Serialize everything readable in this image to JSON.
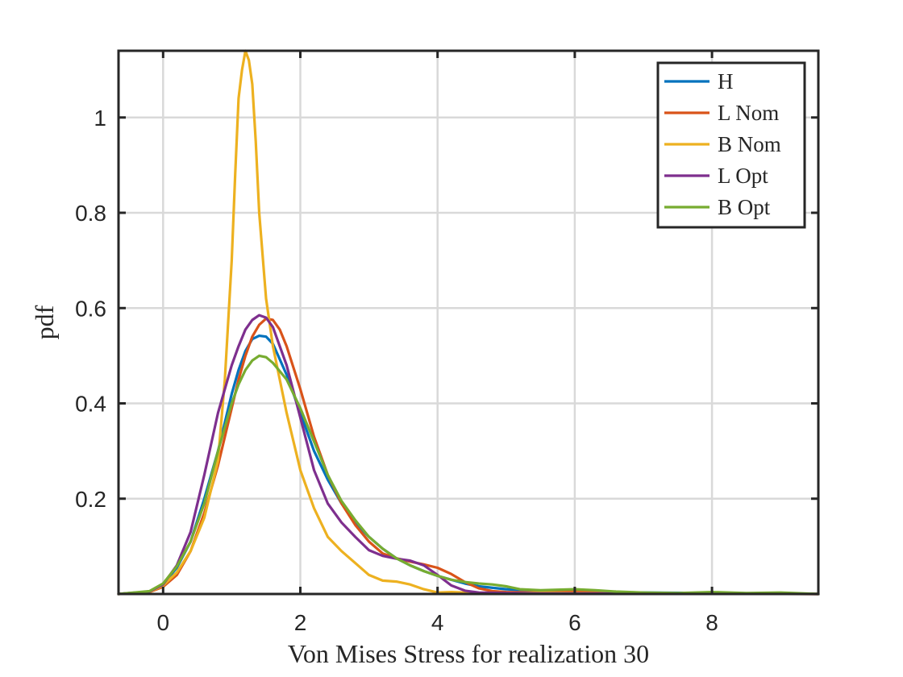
{
  "chart_data": {
    "type": "line",
    "title": "",
    "xlabel": "Von Mises Stress for realization 30",
    "ylabel": "pdf",
    "xlim": [
      -0.65,
      9.55
    ],
    "ylim": [
      0,
      1.14
    ],
    "xticks": [
      0,
      2,
      4,
      6,
      8
    ],
    "yticks": [
      0.2,
      0.4,
      0.6,
      0.8,
      1
    ],
    "xtick_labels": [
      "0",
      "2",
      "4",
      "6",
      "8"
    ],
    "ytick_labels": [
      "0.2",
      "0.4",
      "0.6",
      "0.8",
      "1"
    ],
    "grid": true,
    "legend_position": "top-right",
    "series": [
      {
        "name": "H",
        "color": "#0072BD",
        "x": [
          -0.65,
          -0.2,
          0.0,
          0.2,
          0.4,
          0.6,
          0.8,
          1.0,
          1.1,
          1.2,
          1.3,
          1.4,
          1.5,
          1.6,
          1.8,
          2.0,
          2.2,
          2.4,
          2.6,
          2.8,
          3.0,
          3.2,
          3.4,
          3.6,
          3.8,
          4.0,
          4.2,
          4.4,
          4.6,
          5.0,
          5.5,
          6.0,
          6.5,
          7.0,
          8.0,
          9.0,
          9.55
        ],
        "y": [
          0.0,
          0.005,
          0.02,
          0.055,
          0.11,
          0.2,
          0.3,
          0.42,
          0.47,
          0.51,
          0.535,
          0.542,
          0.54,
          0.525,
          0.46,
          0.38,
          0.3,
          0.24,
          0.19,
          0.15,
          0.12,
          0.095,
          0.075,
          0.06,
          0.048,
          0.038,
          0.03,
          0.022,
          0.016,
          0.01,
          0.006,
          0.008,
          0.004,
          0.003,
          0.002,
          0.001,
          0.0
        ]
      },
      {
        "name": "L Nom",
        "color": "#D95319",
        "x": [
          -0.65,
          -0.2,
          0.0,
          0.2,
          0.4,
          0.6,
          0.8,
          1.0,
          1.1,
          1.2,
          1.3,
          1.4,
          1.5,
          1.6,
          1.7,
          1.8,
          2.0,
          2.2,
          2.4,
          2.6,
          2.8,
          3.0,
          3.2,
          3.4,
          3.6,
          3.8,
          4.0,
          4.2,
          4.4,
          4.6,
          4.8,
          5.0,
          5.5,
          6.0,
          6.5,
          7.0,
          8.0,
          9.55
        ],
        "y": [
          0.0,
          0.004,
          0.015,
          0.04,
          0.09,
          0.17,
          0.27,
          0.39,
          0.45,
          0.5,
          0.54,
          0.565,
          0.578,
          0.575,
          0.555,
          0.52,
          0.43,
          0.33,
          0.25,
          0.19,
          0.145,
          0.11,
          0.085,
          0.075,
          0.068,
          0.062,
          0.055,
          0.042,
          0.025,
          0.012,
          0.006,
          0.004,
          0.003,
          0.006,
          0.003,
          0.002,
          0.001,
          0.0
        ]
      },
      {
        "name": "B Nom",
        "color": "#EDB120",
        "x": [
          -0.65,
          -0.2,
          0.0,
          0.2,
          0.4,
          0.6,
          0.8,
          0.9,
          1.0,
          1.05,
          1.1,
          1.15,
          1.2,
          1.25,
          1.3,
          1.35,
          1.4,
          1.5,
          1.6,
          1.8,
          2.0,
          2.2,
          2.4,
          2.6,
          2.8,
          3.0,
          3.2,
          3.4,
          3.6,
          3.8,
          4.0,
          4.2,
          4.4,
          4.6,
          5.0,
          5.5,
          6.0,
          7.0,
          9.55
        ],
        "y": [
          0.0,
          0.004,
          0.018,
          0.045,
          0.09,
          0.16,
          0.28,
          0.45,
          0.7,
          0.88,
          1.04,
          1.1,
          1.14,
          1.12,
          1.07,
          0.95,
          0.8,
          0.62,
          0.52,
          0.38,
          0.26,
          0.18,
          0.12,
          0.09,
          0.065,
          0.04,
          0.028,
          0.026,
          0.02,
          0.01,
          0.003,
          0.004,
          0.003,
          0.002,
          0.001,
          0.003,
          0.002,
          0.001,
          0.0
        ]
      },
      {
        "name": "L Opt",
        "color": "#7E2F8E",
        "x": [
          -0.65,
          -0.2,
          0.0,
          0.2,
          0.4,
          0.6,
          0.8,
          1.0,
          1.1,
          1.2,
          1.3,
          1.4,
          1.5,
          1.6,
          1.8,
          2.0,
          2.2,
          2.4,
          2.6,
          2.8,
          3.0,
          3.2,
          3.4,
          3.6,
          3.8,
          4.0,
          4.2,
          4.4,
          4.6,
          5.0,
          5.5,
          6.0,
          7.0,
          9.55
        ],
        "y": [
          0.0,
          0.005,
          0.02,
          0.06,
          0.13,
          0.25,
          0.38,
          0.48,
          0.52,
          0.555,
          0.575,
          0.585,
          0.58,
          0.56,
          0.48,
          0.37,
          0.26,
          0.19,
          0.15,
          0.12,
          0.092,
          0.08,
          0.074,
          0.07,
          0.06,
          0.04,
          0.018,
          0.007,
          0.003,
          0.002,
          0.001,
          0.001,
          0.001,
          0.0
        ]
      },
      {
        "name": "B Opt",
        "color": "#77AC30",
        "x": [
          -0.65,
          -0.2,
          0.0,
          0.2,
          0.4,
          0.6,
          0.8,
          1.0,
          1.1,
          1.2,
          1.3,
          1.4,
          1.5,
          1.6,
          1.8,
          2.0,
          2.2,
          2.4,
          2.6,
          2.8,
          3.0,
          3.2,
          3.4,
          3.6,
          3.8,
          4.0,
          4.2,
          4.4,
          4.6,
          4.8,
          5.0,
          5.2,
          5.5,
          6.0,
          6.3,
          6.6,
          7.0,
          7.5,
          8.0,
          8.5,
          9.0,
          9.55
        ],
        "y": [
          0.0,
          0.006,
          0.022,
          0.058,
          0.11,
          0.19,
          0.3,
          0.4,
          0.44,
          0.47,
          0.49,
          0.5,
          0.497,
          0.485,
          0.45,
          0.39,
          0.32,
          0.25,
          0.195,
          0.155,
          0.12,
          0.095,
          0.075,
          0.06,
          0.048,
          0.038,
          0.03,
          0.025,
          0.022,
          0.02,
          0.016,
          0.01,
          0.008,
          0.01,
          0.008,
          0.005,
          0.003,
          0.002,
          0.004,
          0.002,
          0.003,
          0.0
        ]
      }
    ]
  }
}
